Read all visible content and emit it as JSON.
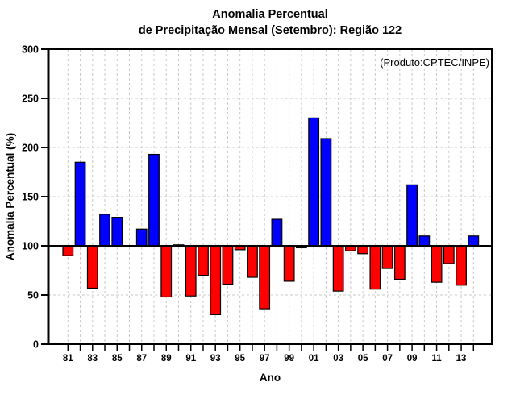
{
  "header": {
    "title_line1": "Anomalia Percentual",
    "title_line2": "de Precipitação Mensal (Setembro): Região 122"
  },
  "watermark": {
    "label": "(Produto:CPTEC/INPE)",
    "color": "#a0a0a0"
  },
  "chart_data": {
    "type": "bar",
    "title": "Anomalia Percentual de Precipitação Mensal (Setembro): Região 122",
    "xlabel": "Ano",
    "ylabel": "Anomalia Percentual (%)",
    "ylim": [
      0,
      300
    ],
    "y_ticks": [
      0,
      50,
      100,
      150,
      200,
      250,
      300
    ],
    "baseline": 100,
    "grid": true,
    "legend": "none",
    "categories": [
      "81",
      "82",
      "83",
      "84",
      "85",
      "86",
      "87",
      "88",
      "89",
      "90",
      "91",
      "92",
      "93",
      "94",
      "95",
      "96",
      "97",
      "98",
      "99",
      "00",
      "01",
      "02",
      "03",
      "04",
      "05",
      "06",
      "07",
      "08",
      "09",
      "10",
      "11",
      "12",
      "13",
      "14"
    ],
    "values": [
      90,
      185,
      57,
      132,
      129,
      100,
      117,
      193,
      48,
      101,
      49,
      70,
      30,
      61,
      96,
      68,
      36,
      127,
      64,
      98,
      230,
      209,
      54,
      95,
      92,
      56,
      77,
      66,
      162,
      110,
      63,
      82,
      60,
      110
    ],
    "x_tick_labels": [
      "81",
      "83",
      "85",
      "87",
      "89",
      "91",
      "93",
      "95",
      "97",
      "99",
      "01",
      "03",
      "05",
      "07",
      "09",
      "11",
      "13"
    ],
    "colors": {
      "above_baseline": "#0000ff",
      "below_baseline": "#ff0000",
      "bar_outline": "#000000",
      "gridline": "#c8c8c8",
      "axis": "#000000",
      "background": "#ffffff"
    }
  }
}
